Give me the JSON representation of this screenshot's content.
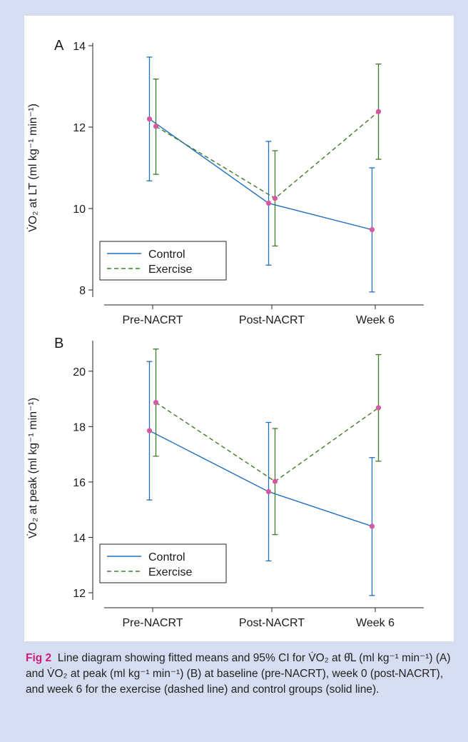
{
  "chart_data": [
    {
      "type": "line",
      "panel_label": "A",
      "ylabel": "V̇O₂ at LT (ml kg⁻¹ min⁻¹)",
      "ylim": [
        8,
        14
      ],
      "yticks": [
        8,
        10,
        12,
        14
      ],
      "categories": [
        "Pre-NACRT",
        "Post-NACRT",
        "Week 6"
      ],
      "series": [
        {
          "name": "Control",
          "style": "solid",
          "color": "#1f6fbf",
          "values": [
            12.2,
            10.13,
            9.48
          ],
          "ci_low": [
            10.68,
            8.61,
            7.95
          ],
          "ci_high": [
            13.72,
            11.65,
            11.0
          ]
        },
        {
          "name": "Exercise",
          "style": "dashed",
          "color": "#3f7a2a",
          "values": [
            12.02,
            10.25,
            12.38
          ],
          "ci_low": [
            10.84,
            9.08,
            11.21
          ],
          "ci_high": [
            13.18,
            11.42,
            13.55
          ]
        }
      ],
      "legend_position": "bottom-left"
    },
    {
      "type": "line",
      "panel_label": "B",
      "ylabel": "V̇O₂ at peak (ml kg⁻¹ min⁻¹)",
      "ylim": [
        12,
        21
      ],
      "yticks": [
        12,
        14,
        16,
        18,
        20
      ],
      "categories": [
        "Pre-NACRT",
        "Post-NACRT",
        "Week 6"
      ],
      "series": [
        {
          "name": "Control",
          "style": "solid",
          "color": "#1f6fbf",
          "values": [
            17.85,
            15.65,
            14.4
          ],
          "ci_low": [
            15.35,
            13.15,
            11.9
          ],
          "ci_high": [
            20.35,
            18.15,
            16.88
          ]
        },
        {
          "name": "Exercise",
          "style": "dashed",
          "color": "#3f7a2a",
          "values": [
            18.87,
            16.02,
            18.68
          ],
          "ci_low": [
            16.93,
            14.1,
            16.75
          ],
          "ci_high": [
            20.8,
            17.93,
            20.6
          ]
        }
      ],
      "legend_position": "bottom-left"
    }
  ],
  "caption": {
    "label": "Fig 2",
    "text": "Line diagram showing fitted means and 95% CI for V̇O₂ at θ̂L (ml kg⁻¹ min⁻¹) (A) and V̇O₂ at peak (ml kg⁻¹ min⁻¹) (B) at baseline (pre-NACRT), week 0 (post-NACRT), and week 6 for the exercise (dashed line) and control groups (solid line)."
  },
  "colors": {
    "figure_background": "#d7ddf1",
    "point_marker": "#d6589f",
    "caption_label": "#cc1c7e"
  }
}
